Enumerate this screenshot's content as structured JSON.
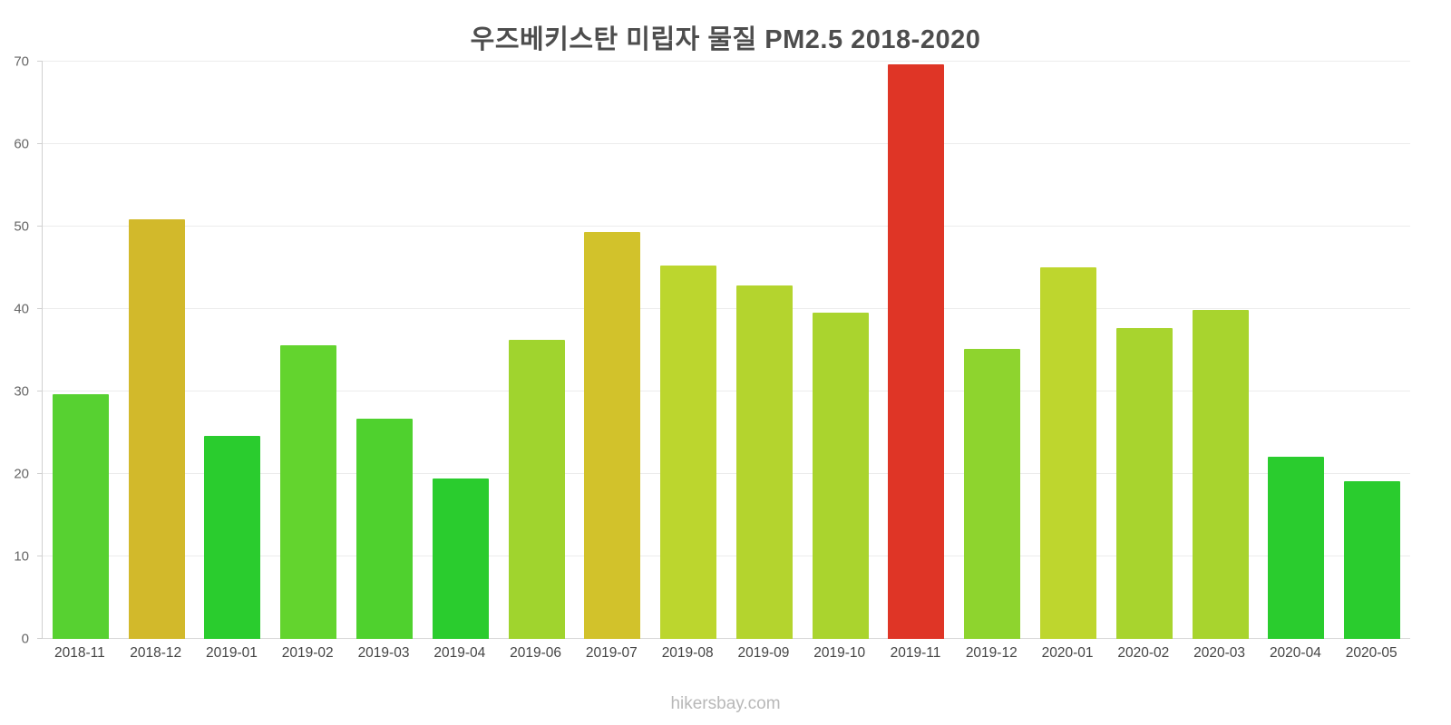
{
  "chart_data": {
    "type": "bar",
    "title": "우즈베키스탄 미립자 물질 PM2.5 2018-2020",
    "categories": [
      "2018-11",
      "2018-12",
      "2019-01",
      "2019-02",
      "2019-03",
      "2019-04",
      "2019-06",
      "2019-07",
      "2019-08",
      "2019-09",
      "2019-10",
      "2019-11",
      "2019-12",
      "2020-01",
      "2020-02",
      "2020-03",
      "2020-04",
      "2020-05"
    ],
    "values": [
      29.7,
      50.9,
      24.6,
      35.6,
      26.7,
      19.5,
      36.3,
      49.3,
      45.3,
      42.9,
      39.6,
      69.7,
      35.2,
      45.1,
      37.7,
      39.9,
      22.1,
      19.1
    ],
    "bar_colors": [
      "#57d131",
      "#d2b92b",
      "#2acc2e",
      "#63d42e",
      "#4fd12e",
      "#2acc2e",
      "#a0d42e",
      "#d2c22b",
      "#bcd62e",
      "#b4d42e",
      "#aad42e",
      "#df3526",
      "#8ed42e",
      "#bed62e",
      "#a8d42e",
      "#a8d42e",
      "#2acc2e",
      "#2acc2e"
    ],
    "xlabel": "",
    "ylabel": "",
    "ylim": [
      0,
      70
    ],
    "yticks": [
      0,
      10,
      20,
      30,
      40,
      50,
      60,
      70
    ],
    "grid": "horizontal",
    "legend": "none"
  },
  "footer": {
    "watermark": "hikersbay.com"
  }
}
